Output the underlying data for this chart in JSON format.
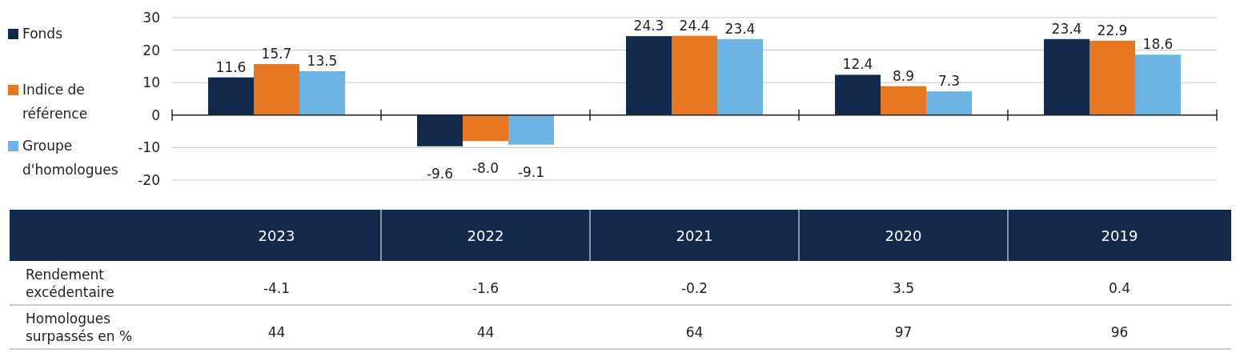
{
  "chart_data": [
    {
      "type": "bar",
      "categories": [
        "2023",
        "2022",
        "2021",
        "2020",
        "2019"
      ],
      "series": [
        {
          "name": "Fonds",
          "color": "#13294b",
          "values": [
            11.6,
            -9.6,
            24.3,
            12.4,
            23.4
          ],
          "value_labels": [
            "11.6",
            "-9.6",
            "24.3",
            "12.4",
            "23.4"
          ]
        },
        {
          "name": "Indice de référence",
          "color": "#e87722",
          "values": [
            15.7,
            -8.0,
            24.4,
            8.9,
            22.9
          ],
          "value_labels": [
            "15.7",
            "-8.0",
            "24.4",
            "8.9",
            "22.9"
          ]
        },
        {
          "name": "Groupe d'homologues",
          "color": "#6cb4e4",
          "values": [
            13.5,
            -9.1,
            23.4,
            7.3,
            18.6
          ],
          "value_labels": [
            "13.5",
            "-9.1",
            "23.4",
            "7.3",
            "18.6"
          ]
        }
      ],
      "ylim": [
        -20,
        30
      ],
      "yticks": [
        -20,
        -10,
        0,
        10,
        20,
        30
      ],
      "grid": "y",
      "legend": "left"
    },
    {
      "type": "other",
      "annotations": [
        "Rendement excédentaire",
        "-4.1",
        "-1.6",
        "-0.2",
        "3.5",
        "0.4",
        "Homologues surpassés en %",
        "44",
        "44",
        "64",
        "97",
        "96"
      ]
    }
  ]
}
